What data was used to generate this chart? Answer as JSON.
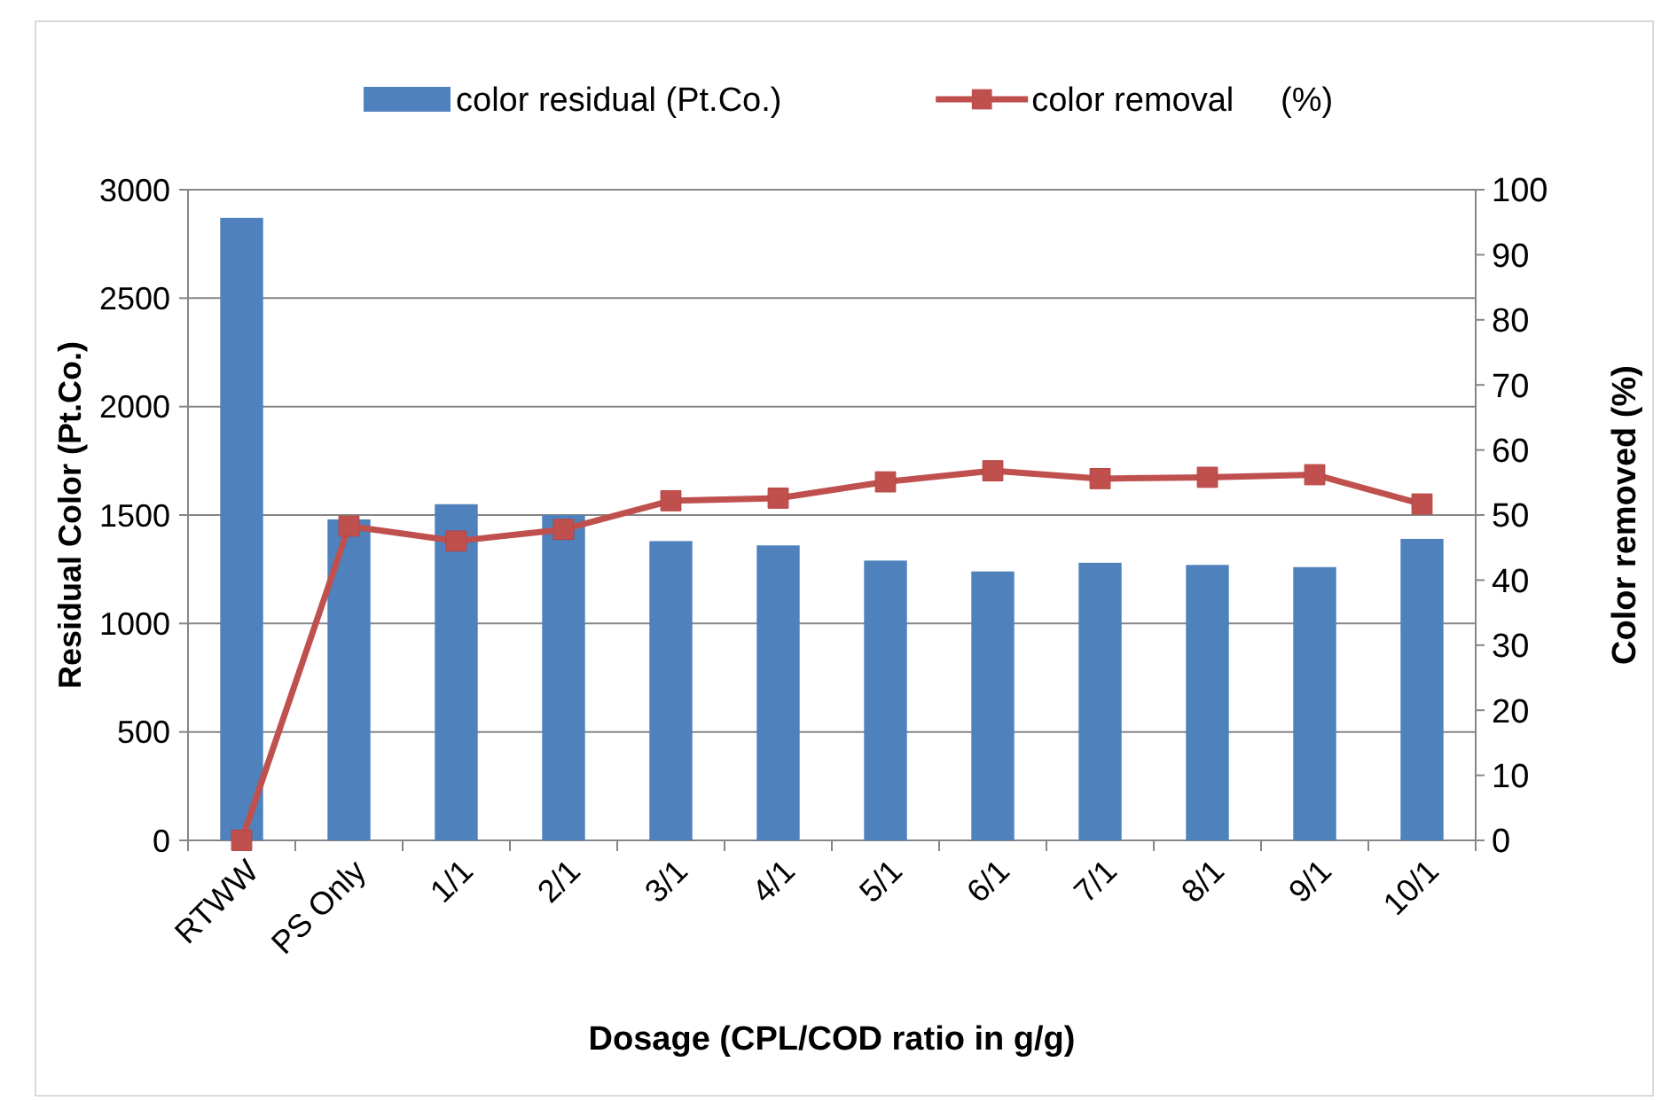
{
  "chart_data": {
    "type": "bar",
    "xlabel": "Dosage (CPL/COD ratio in g/g)",
    "ylabel": "Residual Color (Pt.Co.)",
    "y2label": "Color removed (%)",
    "categories": [
      "RTWW",
      "PS Only",
      "1/1",
      "2/1",
      "3/1",
      "4/1",
      "5/1",
      "6/1",
      "7/1",
      "8/1",
      "9/1",
      "10/1"
    ],
    "series": [
      {
        "name": "color residual (Pt.Co.)",
        "color": "#4f81bd",
        "values": [
          2870,
          1480,
          1550,
          1500,
          1380,
          1360,
          1290,
          1240,
          1280,
          1270,
          1260,
          1390
        ]
      },
      {
        "name": "color removal     (%)",
        "type": "line",
        "axis": "y2",
        "color": "#c0504d",
        "marker": "square",
        "values": [
          0,
          48.3,
          46,
          47.8,
          52.2,
          52.6,
          55.1,
          56.8,
          55.6,
          55.8,
          56.2,
          51.7
        ]
      }
    ],
    "ylim": [
      0,
      3000
    ],
    "yticks": [
      0,
      500,
      1000,
      1500,
      2000,
      2500,
      3000
    ],
    "y2lim": [
      0,
      100
    ],
    "y2ticks": [
      0,
      10,
      20,
      30,
      40,
      50,
      60,
      70,
      80,
      90,
      100
    ],
    "grid": "y",
    "legend": "top"
  }
}
